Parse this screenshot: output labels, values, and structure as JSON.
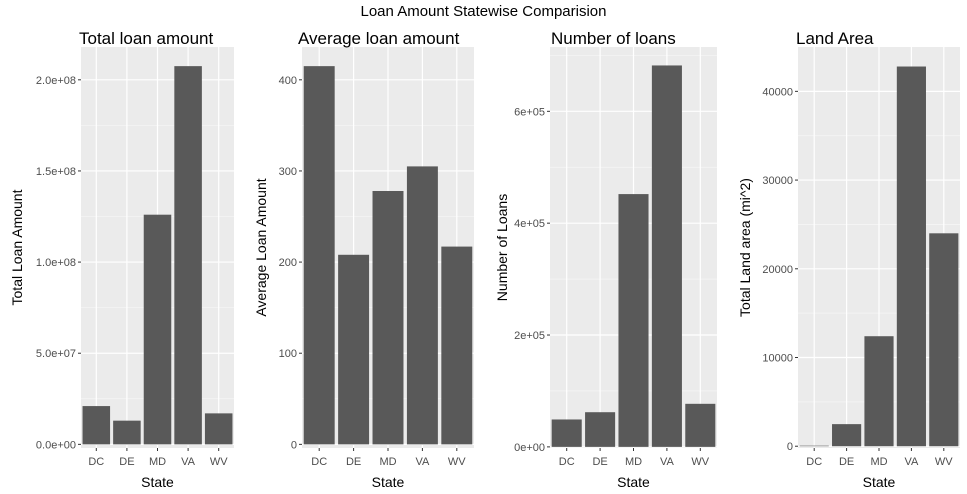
{
  "title": "Loan Amount Statewise Comparision",
  "colors": {
    "panel_bg": "#ebebeb",
    "grid_major": "#ffffff",
    "bar": "#595959",
    "tick_text": "#4d4d4d"
  },
  "chart_data": [
    {
      "type": "bar",
      "title": "Total loan amount",
      "xlabel": "State",
      "ylabel": "Total Loan Amount",
      "categories": [
        "DC",
        "DE",
        "MD",
        "VA",
        "WV"
      ],
      "values": [
        21000000,
        13000000,
        126000000,
        207500000,
        17000000
      ],
      "ylim": [
        -2000000,
        218000000
      ],
      "yticks": [
        0,
        50000000,
        100000000,
        150000000,
        200000000
      ],
      "ytick_labels": [
        "0.0e+00",
        "5.0e+07",
        "1.0e+08",
        "1.5e+08",
        "2.0e+08"
      ],
      "grid": true
    },
    {
      "type": "bar",
      "title": "Average loan amount",
      "xlabel": "State",
      "ylabel": "Average Loan Amount",
      "categories": [
        "DC",
        "DE",
        "MD",
        "VA",
        "WV"
      ],
      "values": [
        415,
        208,
        278,
        305,
        217
      ],
      "ylim": [
        -4,
        436
      ],
      "yticks": [
        0,
        100,
        200,
        300,
        400
      ],
      "ytick_labels": [
        "0",
        "100",
        "200",
        "300",
        "400"
      ],
      "grid": true
    },
    {
      "type": "bar",
      "title": "Number of loans",
      "xlabel": "State",
      "ylabel": "Number of Loans",
      "categories": [
        "DC",
        "DE",
        "MD",
        "VA",
        "WV"
      ],
      "values": [
        49000,
        62000,
        452000,
        682000,
        77000
      ],
      "ylim": [
        -2000,
        715000
      ],
      "yticks": [
        0,
        200000,
        400000,
        600000
      ],
      "ytick_labels": [
        "0e+00",
        "2e+05",
        "4e+05",
        "6e+05"
      ],
      "grid": true
    },
    {
      "type": "bar",
      "title": "Land Area",
      "xlabel": "State",
      "ylabel": "Total Land area (mi^2)",
      "categories": [
        "DC",
        "DE",
        "MD",
        "VA",
        "WV"
      ],
      "values": [
        61,
        2490,
        12400,
        42800,
        24000
      ],
      "ylim": [
        -200,
        45000
      ],
      "yticks": [
        0,
        10000,
        20000,
        30000,
        40000
      ],
      "ytick_labels": [
        "0",
        "10000",
        "20000",
        "30000",
        "40000"
      ],
      "grid": true
    }
  ]
}
